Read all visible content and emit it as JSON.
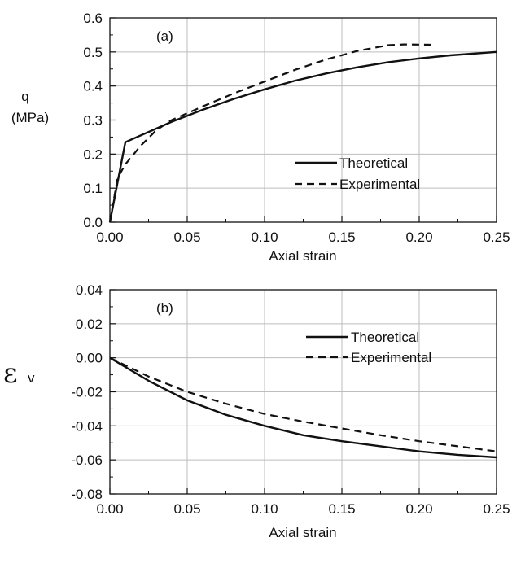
{
  "chart_data": [
    {
      "type": "line",
      "panel_label": "(a)",
      "xlabel": "Axial strain",
      "ylabel": "q",
      "ylabel_unit": "(MPa)",
      "xlim": [
        0,
        0.25
      ],
      "ylim": [
        0,
        0.6
      ],
      "xticks": [
        "0.00",
        "0.05",
        "0.10",
        "0.15",
        "0.20",
        "0.25"
      ],
      "yticks": [
        "0.0",
        "0.1",
        "0.2",
        "0.3",
        "0.4",
        "0.5",
        "0.6"
      ],
      "grid": true,
      "legend_position": "center-right",
      "series": [
        {
          "name": "Theoretical",
          "style": "solid",
          "x": [
            0,
            0.01,
            0.02,
            0.04,
            0.06,
            0.08,
            0.1,
            0.12,
            0.14,
            0.16,
            0.18,
            0.2,
            0.22,
            0.25
          ],
          "y": [
            0,
            0.235,
            0.255,
            0.295,
            0.33,
            0.362,
            0.39,
            0.416,
            0.437,
            0.455,
            0.47,
            0.481,
            0.49,
            0.5
          ]
        },
        {
          "name": "Experimental",
          "style": "dashed",
          "x": [
            0,
            0.005,
            0.01,
            0.02,
            0.03,
            0.04,
            0.06,
            0.08,
            0.1,
            0.12,
            0.14,
            0.16,
            0.18,
            0.19,
            0.21
          ],
          "y": [
            0,
            0.13,
            0.17,
            0.225,
            0.27,
            0.3,
            0.34,
            0.378,
            0.413,
            0.448,
            0.478,
            0.503,
            0.52,
            0.522,
            0.521
          ]
        }
      ]
    },
    {
      "type": "line",
      "panel_label": "(b)",
      "xlabel": "Axial strain",
      "ylabel_symbol": "ε",
      "ylabel_subscript": "v",
      "xlim": [
        0,
        0.25
      ],
      "ylim": [
        -0.08,
        0.04
      ],
      "xticks": [
        "0.00",
        "0.05",
        "0.10",
        "0.15",
        "0.20",
        "0.25"
      ],
      "yticks": [
        "0.04",
        "0.02",
        "0.00",
        "-0.02",
        "-0.04",
        "-0.06",
        "-0.08"
      ],
      "grid": true,
      "legend_position": "top-right",
      "series": [
        {
          "name": "Theoretical",
          "style": "solid",
          "x": [
            0,
            0.025,
            0.05,
            0.075,
            0.1,
            0.125,
            0.15,
            0.175,
            0.2,
            0.225,
            0.25
          ],
          "y": [
            0,
            -0.0135,
            -0.025,
            -0.0335,
            -0.04,
            -0.0455,
            -0.049,
            -0.052,
            -0.055,
            -0.057,
            -0.0585
          ]
        },
        {
          "name": "Experimental",
          "style": "dashed",
          "x": [
            0,
            0.025,
            0.05,
            0.075,
            0.1,
            0.125,
            0.15,
            0.175,
            0.2,
            0.225,
            0.25
          ],
          "y": [
            0,
            -0.011,
            -0.02,
            -0.027,
            -0.033,
            -0.0375,
            -0.0415,
            -0.0455,
            -0.049,
            -0.052,
            -0.055
          ]
        }
      ]
    }
  ]
}
